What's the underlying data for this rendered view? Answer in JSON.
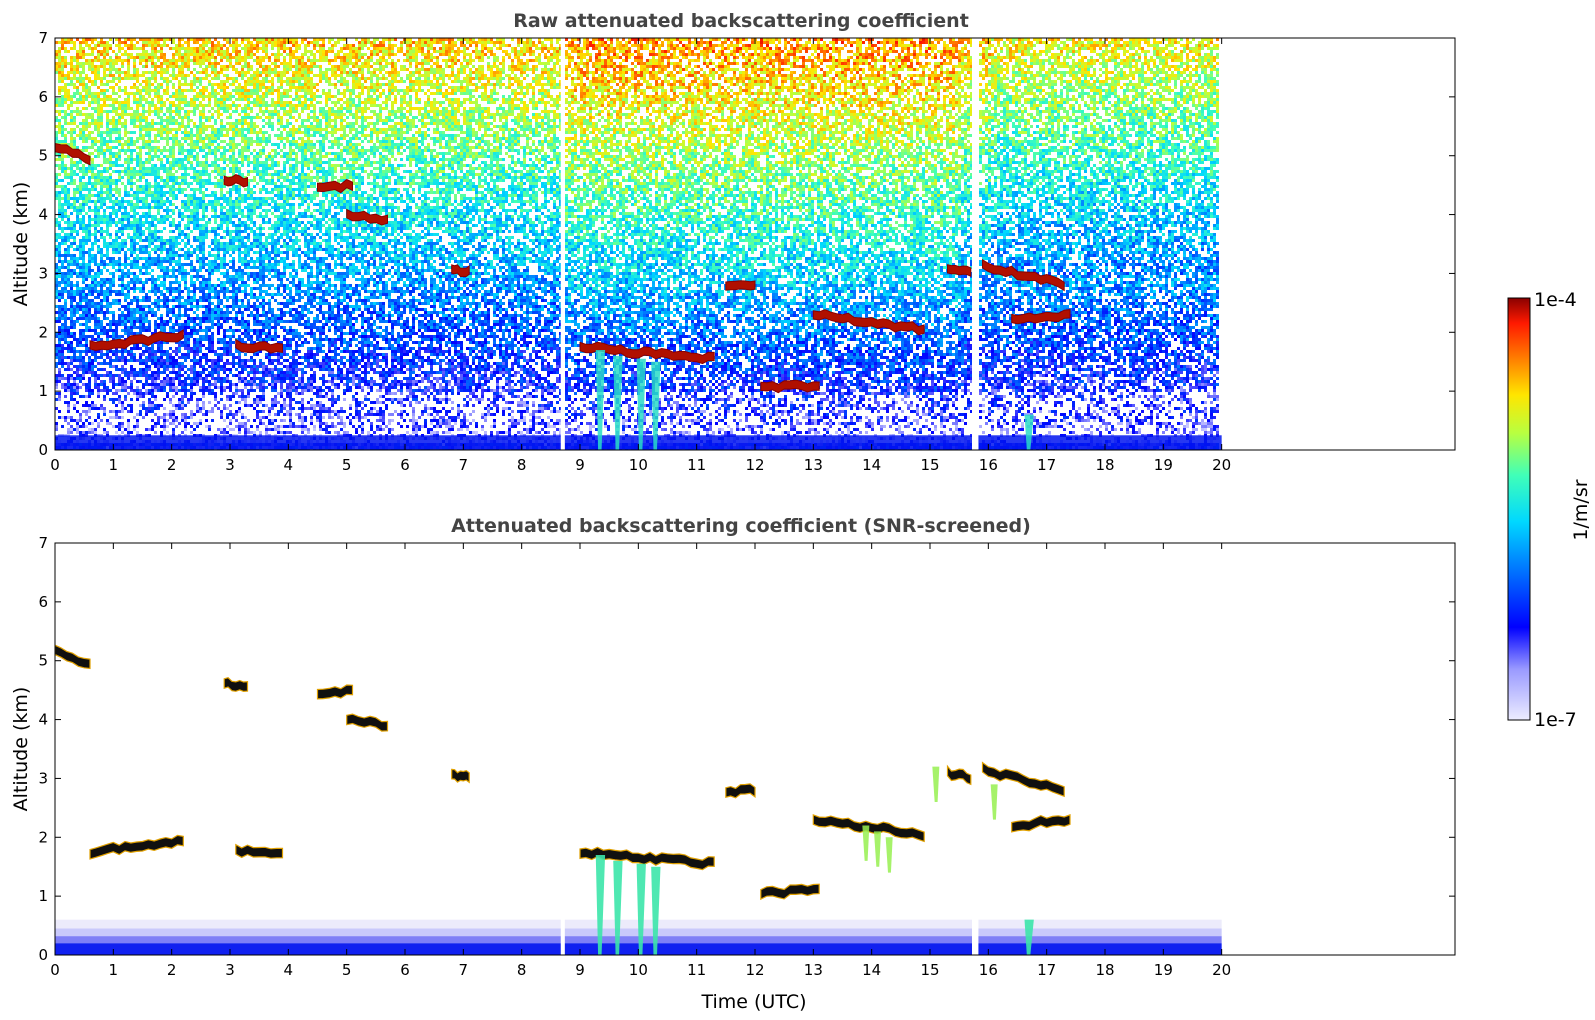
{
  "chart_data": [
    {
      "type": "heatmap",
      "title": "Raw attenuated backscattering coefficient",
      "xlabel": "",
      "ylabel": "Altitude (km)",
      "x_ticks": [
        "0",
        "1",
        "2",
        "3",
        "4",
        "5",
        "6",
        "7",
        "8",
        "9",
        "10",
        "11",
        "12",
        "13",
        "14",
        "15",
        "16",
        "17",
        "18",
        "19",
        "20"
      ],
      "y_ticks": [
        "0",
        "1",
        "2",
        "3",
        "4",
        "5",
        "6",
        "7"
      ],
      "xlim": [
        0,
        24
      ],
      "ylim": [
        0,
        7
      ],
      "data_extent_x": [
        0,
        20
      ],
      "data_gaps_x": [
        [
          8.67,
          8.74
        ],
        [
          15.72,
          15.83
        ]
      ],
      "colormap": "jet (log scale)",
      "cloud_layers": [
        {
          "t_start": 0.0,
          "t_end": 0.6,
          "alt_start": 5.15,
          "alt_end": 4.95
        },
        {
          "t_start": 0.6,
          "t_end": 2.2,
          "alt_start": 1.75,
          "alt_end": 1.95
        },
        {
          "t_start": 3.1,
          "t_end": 3.9,
          "alt_start": 1.78,
          "alt_end": 1.72
        },
        {
          "t_start": 2.9,
          "t_end": 3.3,
          "alt_start": 4.6,
          "alt_end": 4.55
        },
        {
          "t_start": 5.0,
          "t_end": 5.7,
          "alt_start": 4.0,
          "alt_end": 3.9
        },
        {
          "t_start": 4.5,
          "t_end": 5.1,
          "alt_start": 4.45,
          "alt_end": 4.5
        },
        {
          "t_start": 6.8,
          "t_end": 7.1,
          "alt_start": 3.05,
          "alt_end": 3.02
        },
        {
          "t_start": 9.0,
          "t_end": 11.3,
          "alt_start": 1.75,
          "alt_end": 1.55
        },
        {
          "t_start": 12.1,
          "t_end": 13.1,
          "alt_start": 1.05,
          "alt_end": 1.1
        },
        {
          "t_start": 13.0,
          "t_end": 14.9,
          "alt_start": 2.3,
          "alt_end": 2.05
        },
        {
          "t_start": 15.3,
          "t_end": 15.7,
          "alt_start": 3.1,
          "alt_end": 3.0
        },
        {
          "t_start": 15.9,
          "t_end": 17.3,
          "alt_start": 3.15,
          "alt_end": 2.8
        },
        {
          "t_start": 16.4,
          "t_end": 17.4,
          "alt_start": 2.2,
          "alt_end": 2.3
        },
        {
          "t_start": 11.5,
          "t_end": 12.0,
          "alt_start": 2.75,
          "alt_end": 2.8
        }
      ]
    },
    {
      "type": "heatmap",
      "title": "Attenuated backscattering coefficient (SNR-screened)",
      "xlabel": "Time (UTC)",
      "ylabel": "Altitude (km)",
      "x_ticks": [
        "0",
        "1",
        "2",
        "3",
        "4",
        "5",
        "6",
        "7",
        "8",
        "9",
        "10",
        "11",
        "12",
        "13",
        "14",
        "15",
        "16",
        "17",
        "18",
        "19",
        "20"
      ],
      "y_ticks": [
        "0",
        "1",
        "2",
        "3",
        "4",
        "5",
        "6",
        "7"
      ],
      "xlim": [
        0,
        24
      ],
      "ylim": [
        0,
        7
      ],
      "data_extent_x": [
        0,
        20
      ],
      "colormap": "jet (log scale)"
    }
  ],
  "colorbar": {
    "max_label": "1e-4",
    "min_label": "1e-7",
    "unit_label": "1/m/sr",
    "range": [
      1e-07,
      0.0001
    ],
    "scale": "log"
  }
}
